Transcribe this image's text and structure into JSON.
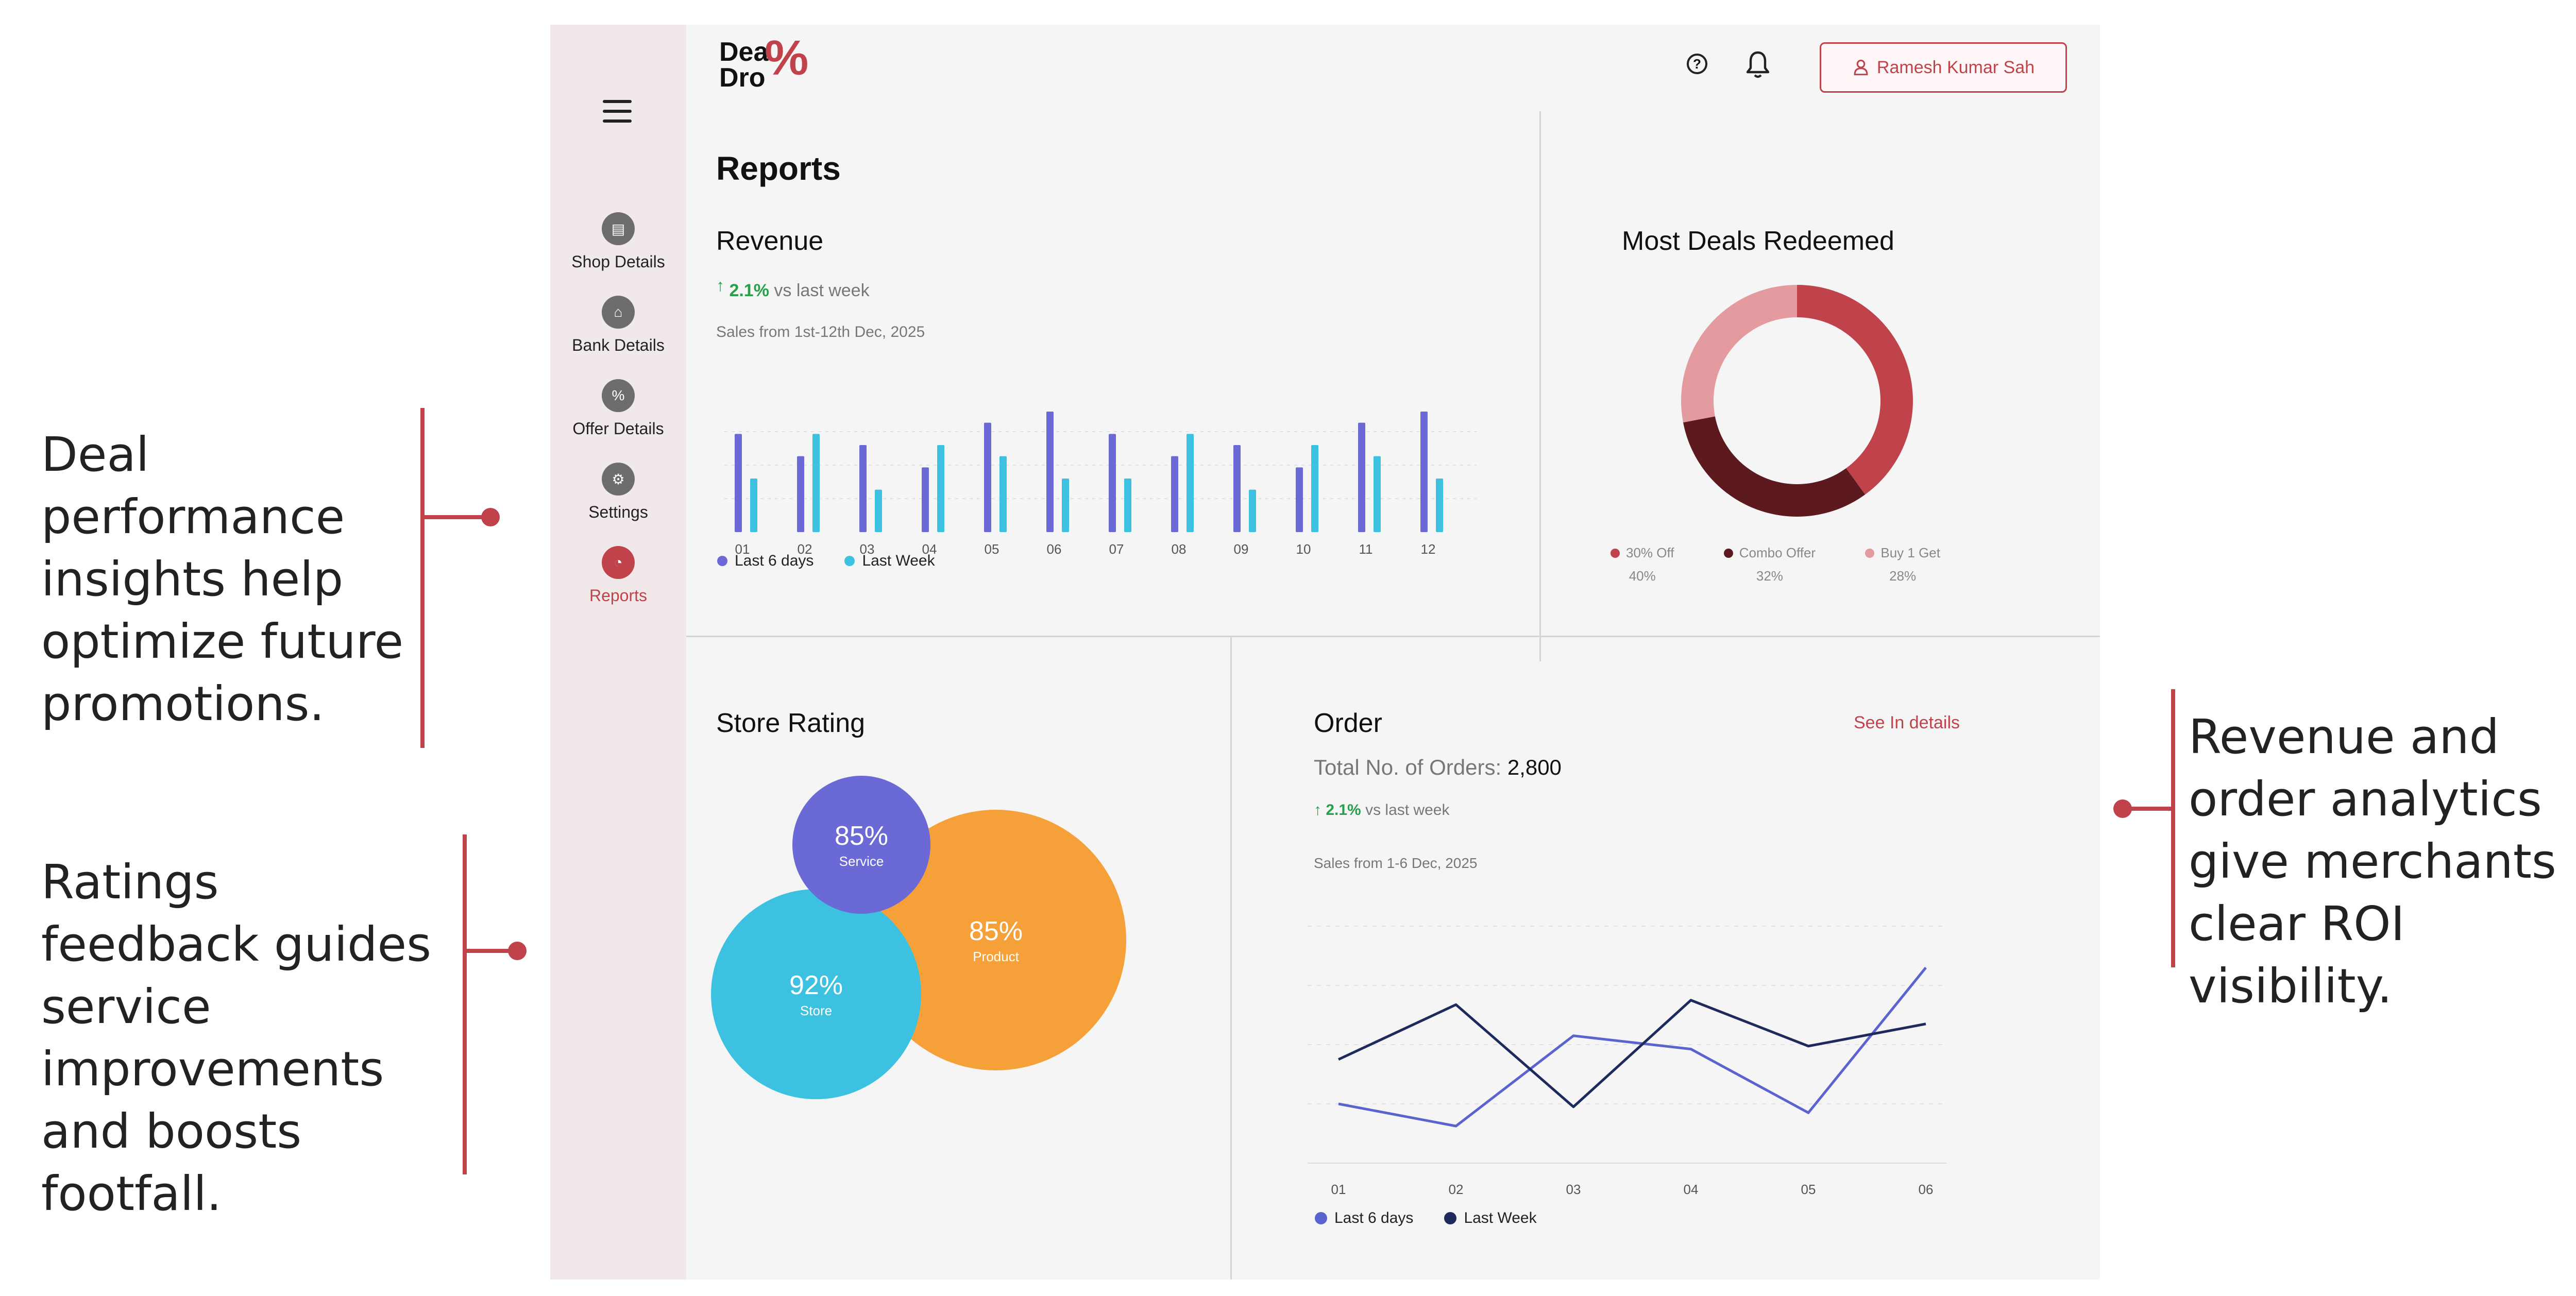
{
  "annotations": {
    "left_top": "Deal performance insights help optimize future promotions.",
    "left_bottom": "Ratings feedback guides service improvements and boosts footfall.",
    "right": "Revenue and order analytics give merchants clear ROI visibility."
  },
  "app": {
    "logo_text_line1": "Dea",
    "logo_text_line2": "Dro",
    "logo_mark": "%",
    "user_name": "Ramesh Kumar Sah",
    "icons": [
      "menu-icon",
      "help-icon",
      "bell-icon",
      "user-icon"
    ]
  },
  "sidebar": {
    "items": [
      {
        "label": "Shop Details",
        "icon": "shop-icon",
        "glyph": "▤"
      },
      {
        "label": "Bank Details",
        "icon": "bank-icon",
        "glyph": "⌂"
      },
      {
        "label": "Offer Details",
        "icon": "percent-icon",
        "glyph": "%"
      },
      {
        "label": "Settings",
        "icon": "gear-icon",
        "glyph": "⚙"
      },
      {
        "label": "Reports",
        "icon": "reports-icon",
        "glyph": "◔",
        "active": true
      }
    ]
  },
  "page_title": "Reports",
  "revenue": {
    "title": "Revenue",
    "change": "2.1%",
    "change_suffix": "vs last week",
    "subtitle": "Sales from 1st-12th Dec, 2025",
    "legend": [
      "Last 6 days",
      "Last Week"
    ]
  },
  "deals": {
    "title": "Most Deals Redeemed",
    "items": [
      {
        "label": "30% Off",
        "value": "40%",
        "color": "#c0434b"
      },
      {
        "label": "Combo Offer",
        "value": "32%",
        "color": "#5c1a1f"
      },
      {
        "label": "Buy 1 Get",
        "value": "28%",
        "color": "#e39b9f"
      }
    ]
  },
  "store_rating": {
    "title": "Store Rating",
    "bubbles": [
      {
        "value": "85%",
        "label": "Product",
        "color": "#f6a03a"
      },
      {
        "value": "92%",
        "label": "Store",
        "color": "#3cc2e0"
      },
      {
        "value": "85%",
        "label": "Service",
        "color": "#6b69d6"
      }
    ]
  },
  "order": {
    "title": "Order",
    "see_details": "See In details",
    "total_label": "Total No. of Orders:",
    "total_value": "2,800",
    "change": "2.1%",
    "change_suffix": "vs last week",
    "subtitle": "Sales from 1-6 Dec, 2025",
    "legend": [
      "Last 6 days",
      "Last Week"
    ]
  },
  "chart_data": [
    {
      "type": "bar",
      "title": "Revenue",
      "categories": [
        "01",
        "02",
        "03",
        "04",
        "05",
        "06",
        "07",
        "08",
        "09",
        "10",
        "11",
        "12"
      ],
      "series": [
        {
          "name": "Last 6 days",
          "color": "#6b69d6",
          "values": [
            88,
            68,
            78,
            58,
            98,
            108,
            88,
            68,
            78,
            58,
            98,
            108
          ]
        },
        {
          "name": "Last Week",
          "color": "#3cc2e0",
          "values": [
            48,
            88,
            38,
            78,
            68,
            48,
            48,
            88,
            38,
            78,
            68,
            48
          ]
        }
      ],
      "ylim": [
        0,
        120
      ],
      "grid": true,
      "legend_position": "bottom-left"
    },
    {
      "type": "pie",
      "title": "Most Deals Redeemed",
      "categories": [
        "30% Off",
        "Combo Offer",
        "Buy 1 Get"
      ],
      "values": [
        40,
        32,
        28
      ],
      "colors": [
        "#c0434b",
        "#5c1a1f",
        "#e39b9f"
      ]
    },
    {
      "type": "line",
      "title": "Order",
      "x": [
        "01",
        "02",
        "03",
        "04",
        "05",
        "06"
      ],
      "series": [
        {
          "name": "Last 6 days",
          "color": "#5b63cf",
          "values": [
            40,
            25,
            86,
            77,
            34,
            132
          ]
        },
        {
          "name": "Last Week",
          "color": "#1f2a5c",
          "values": [
            70,
            107,
            38,
            110,
            79,
            94
          ]
        }
      ],
      "ylim": [
        0,
        160
      ],
      "grid": true,
      "legend_position": "bottom-left"
    }
  ]
}
